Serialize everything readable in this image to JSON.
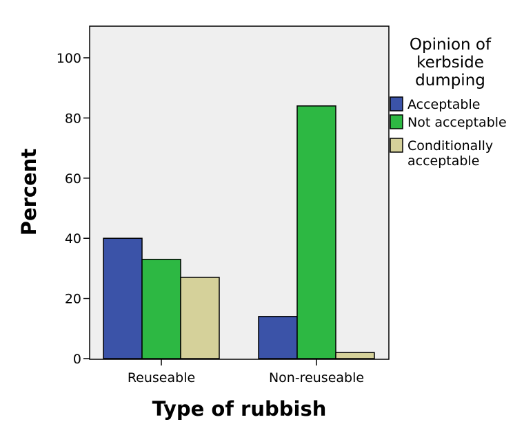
{
  "chart_data": {
    "type": "bar",
    "title": "",
    "xlabel": "Type of rubbish",
    "ylabel": "Percent",
    "categories": [
      "Reuseable",
      "Non-reuseable"
    ],
    "ylim": [
      0,
      110
    ],
    "yticks": [
      0,
      20,
      40,
      60,
      80,
      100
    ],
    "grid": false,
    "legend": {
      "title_lines": [
        "Opinion of",
        "kerbside",
        "dumping"
      ],
      "placement": "right"
    },
    "series": [
      {
        "name": "Acceptable",
        "label_lines": [
          "Acceptable"
        ],
        "values": [
          40,
          14
        ],
        "color": "#3b53a8"
      },
      {
        "name": "Not acceptable",
        "label_lines": [
          "Not acceptable"
        ],
        "values": [
          33,
          84
        ],
        "color": "#2db843"
      },
      {
        "name": "Conditionally acceptable",
        "label_lines": [
          "Conditionally",
          "acceptable"
        ],
        "values": [
          27,
          2
        ],
        "color": "#d5d19a"
      }
    ],
    "plot_background": "#efefef"
  }
}
